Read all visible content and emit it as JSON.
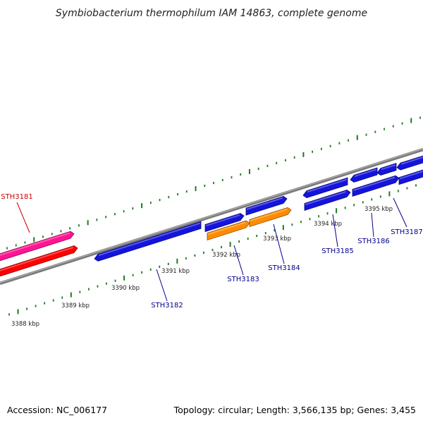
{
  "title": "Symbiobacterium thermophilum IAM 14863, complete genome",
  "footer": {
    "accession": "Accession: NC_006177",
    "stats": "Topology: circular; Length: 3,566,135 bp; Genes: 3,455"
  },
  "scale_labels": [
    "3388 kbp",
    "3389 kbp",
    "3390 kbp",
    "3391 kbp",
    "3392 kbp",
    "3393 kbp",
    "3394 kbp",
    "3395 kbp"
  ],
  "colors": {
    "backbone": "#808080",
    "tick": "#1e7a1e",
    "gene_blue": "#1414dc",
    "gene_orange": "#ff8c00",
    "gene_red": "#ff0000",
    "gene_pink": "#ff1493",
    "label_blue": "#00008b",
    "label_red": "#cc0000"
  },
  "genes": [
    {
      "label": "STH3181",
      "label_color": "label_red"
    },
    {
      "label": "STH3182",
      "label_color": "label_blue"
    },
    {
      "label": "STH3183",
      "label_color": "label_blue"
    },
    {
      "label": "STH3184",
      "label_color": "label_blue"
    },
    {
      "label": "STH3185",
      "label_color": "label_blue"
    },
    {
      "label": "STH3186",
      "label_color": "label_blue"
    },
    {
      "label": "STH3187",
      "label_color": "label_blue"
    }
  ]
}
